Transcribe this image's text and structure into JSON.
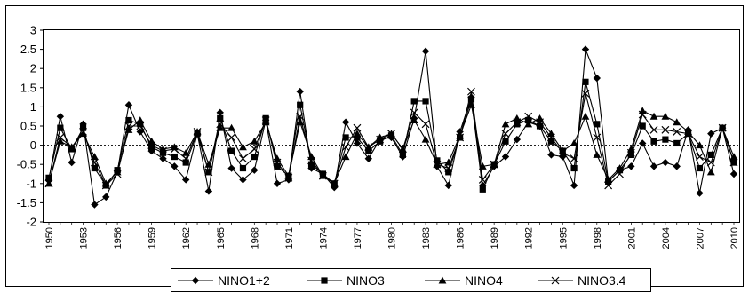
{
  "chart_data": {
    "type": "line",
    "title": "",
    "xlabel": "",
    "ylabel": "",
    "ylim": [
      -2,
      3
    ],
    "yticks": [
      "3",
      "2.5",
      "2",
      "1.5",
      "1",
      "0.5",
      "0",
      "-0.5",
      "-1",
      "-1.5",
      "-2"
    ],
    "xticks": [
      "1950",
      "1953",
      "1956",
      "1959",
      "1962",
      "1965",
      "1968",
      "1971",
      "1974",
      "1977",
      "1980",
      "1983",
      "1986",
      "1989",
      "1992",
      "1995",
      "1998",
      "2001",
      "2004",
      "2007",
      "2010"
    ],
    "x": [
      1950,
      1951,
      1952,
      1953,
      1954,
      1955,
      1956,
      1957,
      1958,
      1959,
      1960,
      1961,
      1962,
      1963,
      1964,
      1965,
      1966,
      1967,
      1968,
      1969,
      1970,
      1971,
      1972,
      1973,
      1974,
      1975,
      1976,
      1977,
      1978,
      1979,
      1980,
      1981,
      1982,
      1983,
      1984,
      1985,
      1986,
      1987,
      1988,
      1989,
      1990,
      1991,
      1992,
      1993,
      1994,
      1995,
      1996,
      1997,
      1998,
      1999,
      2000,
      2001,
      2002,
      2003,
      2004,
      2005,
      2006,
      2007,
      2008,
      2009,
      2010
    ],
    "legend_position": "bottom",
    "grid": false,
    "series": [
      {
        "name": "NINO1+2",
        "marker": "diamond",
        "values": [
          -0.9,
          0.75,
          -0.45,
          0.55,
          -1.55,
          -1.35,
          -0.7,
          1.05,
          0.35,
          -0.15,
          -0.35,
          -0.55,
          -0.9,
          0.3,
          -1.2,
          0.85,
          -0.6,
          -0.9,
          -0.65,
          0.65,
          -1.0,
          -0.9,
          1.4,
          -0.6,
          -0.75,
          -1.1,
          0.6,
          0.05,
          -0.35,
          0.15,
          0.2,
          -0.3,
          0.7,
          2.45,
          -0.55,
          -1.05,
          0.35,
          1.25,
          -1.05,
          -0.55,
          -0.3,
          0.15,
          0.6,
          0.5,
          -0.25,
          -0.3,
          -1.05,
          2.5,
          1.75,
          -0.95,
          -0.65,
          -0.55,
          0.05,
          -0.55,
          -0.45,
          -0.55,
          0.4,
          -1.25,
          0.3,
          0.45,
          -0.75
        ]
      },
      {
        "name": "NINO3",
        "marker": "square",
        "values": [
          -0.85,
          0.45,
          -0.1,
          0.45,
          -0.6,
          -1.05,
          -0.65,
          0.65,
          0.55,
          -0.05,
          -0.2,
          -0.3,
          -0.45,
          0.3,
          -0.7,
          0.7,
          -0.15,
          -0.6,
          -0.3,
          0.7,
          -0.55,
          -0.8,
          1.05,
          -0.5,
          -0.75,
          -1.0,
          0.2,
          0.2,
          -0.15,
          0.1,
          0.25,
          -0.25,
          1.15,
          1.15,
          -0.4,
          -0.7,
          0.2,
          1.2,
          -1.15,
          -0.5,
          0.1,
          0.55,
          0.65,
          0.5,
          0.1,
          -0.15,
          -0.6,
          1.65,
          0.55,
          -0.95,
          -0.65,
          -0.25,
          0.5,
          0.1,
          0.15,
          0.05,
          0.3,
          -0.6,
          -0.25,
          0.45,
          -0.45
        ]
      },
      {
        "name": "NINO4",
        "marker": "triangle",
        "values": [
          -1.0,
          0.1,
          -0.05,
          0.3,
          -0.3,
          -1.0,
          -0.7,
          0.4,
          0.65,
          0.1,
          -0.1,
          -0.05,
          -0.2,
          0.35,
          -0.5,
          0.45,
          0.45,
          -0.05,
          0.1,
          0.6,
          -0.35,
          -0.8,
          0.6,
          -0.3,
          -0.8,
          -1.0,
          -0.3,
          0.3,
          -0.05,
          0.2,
          0.3,
          -0.1,
          0.65,
          0.15,
          -0.5,
          -0.45,
          0.25,
          1.05,
          -0.55,
          -0.5,
          0.55,
          0.7,
          0.55,
          0.7,
          0.3,
          -0.15,
          0.05,
          0.75,
          -0.25,
          -0.9,
          -0.6,
          -0.1,
          0.9,
          0.75,
          0.75,
          0.6,
          0.35,
          0.0,
          -0.7,
          0.45,
          -0.3
        ]
      },
      {
        "name": "NINO3.4",
        "marker": "x",
        "values": [
          -1.0,
          0.2,
          -0.05,
          0.35,
          -0.45,
          -1.05,
          -0.75,
          0.5,
          0.5,
          0.0,
          -0.15,
          -0.1,
          -0.35,
          0.35,
          -0.7,
          0.55,
          0.2,
          -0.35,
          -0.1,
          0.65,
          -0.45,
          -0.85,
          0.75,
          -0.4,
          -0.8,
          -1.0,
          -0.05,
          0.45,
          -0.05,
          0.15,
          0.3,
          -0.1,
          0.85,
          0.55,
          -0.5,
          -0.6,
          0.2,
          1.4,
          -0.9,
          -0.5,
          0.3,
          0.6,
          0.75,
          0.6,
          0.2,
          -0.2,
          -0.35,
          1.35,
          0.2,
          -1.05,
          -0.75,
          -0.2,
          0.8,
          0.4,
          0.4,
          0.35,
          0.3,
          -0.3,
          -0.45,
          0.45,
          -0.45
        ]
      }
    ]
  }
}
